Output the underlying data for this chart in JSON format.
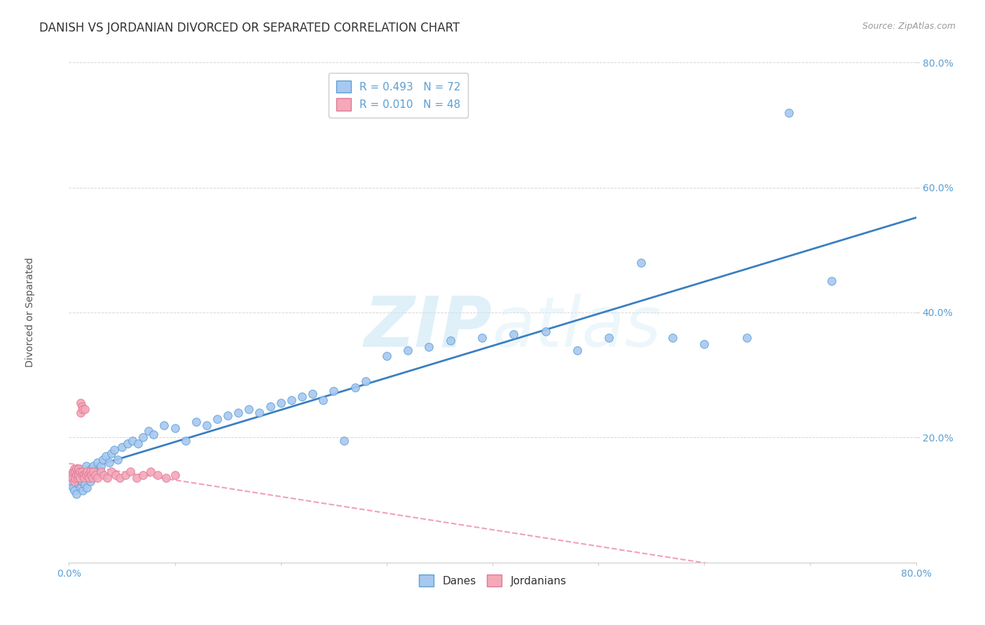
{
  "title": "DANISH VS JORDANIAN DIVORCED OR SEPARATED CORRELATION CHART",
  "source": "Source: ZipAtlas.com",
  "ylabel": "Divorced or Separated",
  "xlim": [
    0.0,
    0.8
  ],
  "ylim": [
    0.0,
    0.8
  ],
  "dane_color": "#a8c8f0",
  "dane_edge_color": "#5a9fd4",
  "jordanian_color": "#f4a8b8",
  "jordanian_edge_color": "#e07898",
  "dane_line_color": "#3a7fc1",
  "jordanian_line_color": "#f0a0b8",
  "watermark_color": "#daedf8",
  "R_dane": 0.493,
  "N_dane": 72,
  "R_jordanian": 0.01,
  "N_jordanian": 48,
  "dane_x": [
    0.002,
    0.004,
    0.005,
    0.006,
    0.007,
    0.008,
    0.009,
    0.01,
    0.011,
    0.012,
    0.013,
    0.014,
    0.015,
    0.016,
    0.017,
    0.018,
    0.019,
    0.02,
    0.021,
    0.022,
    0.023,
    0.025,
    0.027,
    0.03,
    0.032,
    0.035,
    0.038,
    0.04,
    0.043,
    0.046,
    0.05,
    0.055,
    0.06,
    0.065,
    0.07,
    0.075,
    0.08,
    0.09,
    0.1,
    0.11,
    0.12,
    0.13,
    0.14,
    0.15,
    0.16,
    0.17,
    0.18,
    0.19,
    0.2,
    0.21,
    0.22,
    0.23,
    0.24,
    0.25,
    0.26,
    0.27,
    0.28,
    0.3,
    0.32,
    0.34,
    0.36,
    0.39,
    0.42,
    0.45,
    0.48,
    0.51,
    0.54,
    0.57,
    0.6,
    0.64,
    0.68,
    0.72
  ],
  "dane_y": [
    0.13,
    0.12,
    0.115,
    0.14,
    0.11,
    0.135,
    0.125,
    0.145,
    0.12,
    0.13,
    0.115,
    0.14,
    0.125,
    0.155,
    0.12,
    0.135,
    0.145,
    0.13,
    0.15,
    0.14,
    0.155,
    0.145,
    0.16,
    0.155,
    0.165,
    0.17,
    0.16,
    0.175,
    0.18,
    0.165,
    0.185,
    0.19,
    0.195,
    0.19,
    0.2,
    0.21,
    0.205,
    0.22,
    0.215,
    0.195,
    0.225,
    0.22,
    0.23,
    0.235,
    0.24,
    0.245,
    0.24,
    0.25,
    0.255,
    0.26,
    0.265,
    0.27,
    0.26,
    0.275,
    0.195,
    0.28,
    0.29,
    0.33,
    0.34,
    0.345,
    0.355,
    0.36,
    0.365,
    0.37,
    0.34,
    0.36,
    0.48,
    0.36,
    0.35,
    0.36,
    0.72,
    0.45
  ],
  "jordanian_x": [
    0.002,
    0.003,
    0.004,
    0.005,
    0.005,
    0.006,
    0.006,
    0.007,
    0.007,
    0.008,
    0.008,
    0.009,
    0.009,
    0.01,
    0.01,
    0.011,
    0.011,
    0.012,
    0.012,
    0.013,
    0.013,
    0.014,
    0.014,
    0.015,
    0.016,
    0.017,
    0.018,
    0.019,
    0.02,
    0.021,
    0.022,
    0.023,
    0.025,
    0.027,
    0.03,
    0.033,
    0.036,
    0.04,
    0.044,
    0.048,
    0.053,
    0.058,
    0.064,
    0.07,
    0.077,
    0.084,
    0.092,
    0.1
  ],
  "jordanian_y": [
    0.14,
    0.135,
    0.145,
    0.13,
    0.15,
    0.145,
    0.135,
    0.15,
    0.14,
    0.135,
    0.145,
    0.15,
    0.14,
    0.145,
    0.135,
    0.255,
    0.24,
    0.145,
    0.25,
    0.14,
    0.245,
    0.14,
    0.135,
    0.245,
    0.14,
    0.145,
    0.14,
    0.135,
    0.145,
    0.14,
    0.135,
    0.145,
    0.14,
    0.135,
    0.145,
    0.14,
    0.135,
    0.145,
    0.14,
    0.135,
    0.14,
    0.145,
    0.135,
    0.14,
    0.145,
    0.14,
    0.135,
    0.14
  ]
}
